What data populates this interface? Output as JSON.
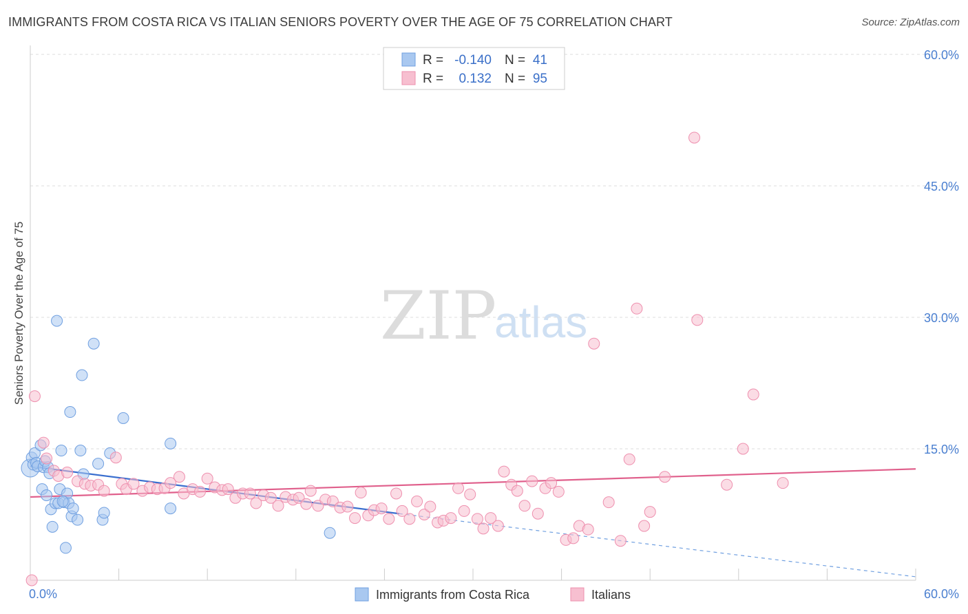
{
  "title": "IMMIGRANTS FROM COSTA RICA VS ITALIAN SENIORS POVERTY OVER THE AGE OF 75 CORRELATION CHART",
  "source": "Source: ZipAtlas.com",
  "watermark": {
    "zip": "ZIP",
    "atlas": "atlas"
  },
  "legend": {
    "rows": [
      {
        "r_label": "R =",
        "r_value": "-0.140",
        "n_label": "N =",
        "n_value": "41",
        "color": "#6f9fe0"
      },
      {
        "r_label": "R =",
        "r_value": "0.132",
        "n_label": "N =",
        "n_value": "95",
        "color": "#ee8fae"
      }
    ]
  },
  "chart_data": {
    "type": "scatter",
    "title": "IMMIGRANTS FROM COSTA RICA VS ITALIAN SENIORS POVERTY OVER THE AGE OF 75 CORRELATION CHART",
    "xlabel": "",
    "ylabel": "Seniors Poverty Over the Age of 75",
    "xlim": [
      0,
      60
    ],
    "ylim": [
      0,
      60
    ],
    "y_ticks": [
      {
        "value": 15,
        "label": "15.0%"
      },
      {
        "value": 30,
        "label": "30.0%"
      },
      {
        "value": 45,
        "label": "45.0%"
      },
      {
        "value": 60,
        "label": "60.0%"
      }
    ],
    "x_tick_labels": {
      "min": "0.0%",
      "max": "60.0%"
    },
    "x_tick_values": [
      0,
      6,
      12,
      18,
      24,
      30,
      36,
      42,
      48,
      54,
      60
    ],
    "grid": true,
    "legend_position": "top-center",
    "series": [
      {
        "name": "Immigrants from Costa Rica",
        "color": "#6f9fe0",
        "fill": "#a9c8f0",
        "points": [
          [
            0.0,
            12.8
          ],
          [
            0.1,
            14.0
          ],
          [
            0.2,
            13.2
          ],
          [
            0.3,
            14.5
          ],
          [
            0.4,
            13.4
          ],
          [
            0.5,
            13.0
          ],
          [
            0.7,
            15.4
          ],
          [
            0.8,
            10.4
          ],
          [
            0.9,
            12.9
          ],
          [
            1.0,
            13.6
          ],
          [
            1.1,
            9.7
          ],
          [
            1.2,
            12.9
          ],
          [
            1.3,
            12.2
          ],
          [
            1.4,
            8.1
          ],
          [
            1.5,
            6.1
          ],
          [
            1.7,
            8.8
          ],
          [
            1.8,
            29.6
          ],
          [
            1.9,
            8.8
          ],
          [
            2.0,
            10.4
          ],
          [
            2.1,
            14.8
          ],
          [
            2.3,
            8.9
          ],
          [
            2.4,
            3.7
          ],
          [
            2.5,
            9.9
          ],
          [
            2.6,
            8.8
          ],
          [
            2.7,
            19.2
          ],
          [
            2.8,
            7.3
          ],
          [
            2.9,
            8.2
          ],
          [
            3.2,
            6.9
          ],
          [
            3.4,
            14.8
          ],
          [
            3.5,
            23.4
          ],
          [
            3.6,
            12.1
          ],
          [
            4.3,
            27.0
          ],
          [
            4.6,
            13.3
          ],
          [
            4.9,
            6.9
          ],
          [
            5.0,
            7.7
          ],
          [
            5.4,
            14.5
          ],
          [
            6.3,
            18.5
          ],
          [
            9.5,
            15.6
          ],
          [
            9.5,
            8.2
          ],
          [
            20.3,
            5.4
          ],
          [
            2.2,
            9.0
          ]
        ],
        "trend": {
          "x": [
            0,
            25
          ],
          "y": [
            13.0,
            7.6
          ]
        },
        "trend_extension": {
          "x": [
            25,
            60
          ],
          "y": [
            7.6,
            0.4
          ]
        }
      },
      {
        "name": "Italians",
        "color": "#ee8fae",
        "fill": "#f7bfd0",
        "points": [
          [
            0.3,
            21.0
          ],
          [
            0.9,
            15.7
          ],
          [
            1.1,
            13.9
          ],
          [
            1.6,
            12.5
          ],
          [
            1.9,
            11.9
          ],
          [
            2.5,
            12.3
          ],
          [
            3.2,
            11.3
          ],
          [
            3.7,
            11.0
          ],
          [
            4.1,
            10.8
          ],
          [
            4.6,
            10.9
          ],
          [
            5.0,
            10.2
          ],
          [
            5.8,
            14.0
          ],
          [
            6.2,
            11.0
          ],
          [
            6.5,
            10.4
          ],
          [
            7.0,
            11.0
          ],
          [
            7.6,
            10.2
          ],
          [
            8.1,
            10.6
          ],
          [
            8.6,
            10.4
          ],
          [
            9.1,
            10.5
          ],
          [
            9.5,
            11.1
          ],
          [
            10.1,
            11.8
          ],
          [
            10.4,
            9.9
          ],
          [
            11.0,
            10.4
          ],
          [
            11.5,
            10.1
          ],
          [
            12.0,
            11.6
          ],
          [
            12.5,
            10.6
          ],
          [
            13.0,
            10.3
          ],
          [
            13.4,
            10.4
          ],
          [
            13.9,
            9.4
          ],
          [
            14.4,
            9.9
          ],
          [
            14.9,
            9.9
          ],
          [
            15.3,
            8.8
          ],
          [
            15.8,
            9.7
          ],
          [
            16.3,
            9.4
          ],
          [
            16.8,
            8.5
          ],
          [
            17.3,
            9.5
          ],
          [
            17.8,
            9.2
          ],
          [
            18.2,
            9.4
          ],
          [
            18.7,
            8.7
          ],
          [
            19.0,
            10.2
          ],
          [
            19.5,
            8.5
          ],
          [
            20.0,
            9.2
          ],
          [
            20.5,
            9.0
          ],
          [
            21.0,
            8.3
          ],
          [
            21.5,
            8.4
          ],
          [
            22.0,
            7.1
          ],
          [
            22.4,
            10.0
          ],
          [
            22.9,
            7.4
          ],
          [
            23.3,
            8.0
          ],
          [
            23.8,
            8.2
          ],
          [
            24.3,
            7.0
          ],
          [
            24.8,
            9.9
          ],
          [
            25.2,
            7.9
          ],
          [
            25.7,
            7.0
          ],
          [
            26.2,
            9.0
          ],
          [
            26.7,
            7.5
          ],
          [
            27.1,
            8.4
          ],
          [
            27.6,
            6.6
          ],
          [
            28.0,
            6.8
          ],
          [
            28.5,
            7.1
          ],
          [
            29.0,
            10.5
          ],
          [
            29.4,
            7.9
          ],
          [
            29.8,
            9.8
          ],
          [
            30.3,
            7.0
          ],
          [
            30.7,
            5.9
          ],
          [
            31.2,
            7.1
          ],
          [
            31.7,
            6.2
          ],
          [
            32.1,
            12.4
          ],
          [
            32.6,
            10.9
          ],
          [
            33.0,
            10.2
          ],
          [
            33.5,
            8.5
          ],
          [
            34.0,
            11.3
          ],
          [
            34.4,
            7.6
          ],
          [
            34.9,
            10.5
          ],
          [
            35.3,
            11.1
          ],
          [
            35.8,
            10.1
          ],
          [
            36.3,
            4.6
          ],
          [
            36.8,
            4.8
          ],
          [
            37.2,
            6.2
          ],
          [
            37.8,
            5.8
          ],
          [
            38.2,
            27.0
          ],
          [
            39.2,
            8.9
          ],
          [
            40.0,
            4.5
          ],
          [
            40.6,
            13.8
          ],
          [
            41.1,
            31.0
          ],
          [
            41.6,
            6.2
          ],
          [
            42.0,
            7.8
          ],
          [
            43.0,
            11.8
          ],
          [
            45.0,
            50.5
          ],
          [
            45.2,
            29.7
          ],
          [
            47.2,
            10.9
          ],
          [
            48.3,
            15.0
          ],
          [
            49.0,
            21.2
          ],
          [
            51.0,
            11.1
          ],
          [
            0.1,
            0.0
          ]
        ],
        "trend": {
          "x": [
            0,
            60
          ],
          "y": [
            9.5,
            12.7
          ]
        }
      }
    ]
  },
  "bottom_legend": [
    {
      "label": "Immigrants from Costa Rica",
      "color": "#6f9fe0"
    },
    {
      "label": "Italians",
      "color": "#ee8fae"
    }
  ]
}
